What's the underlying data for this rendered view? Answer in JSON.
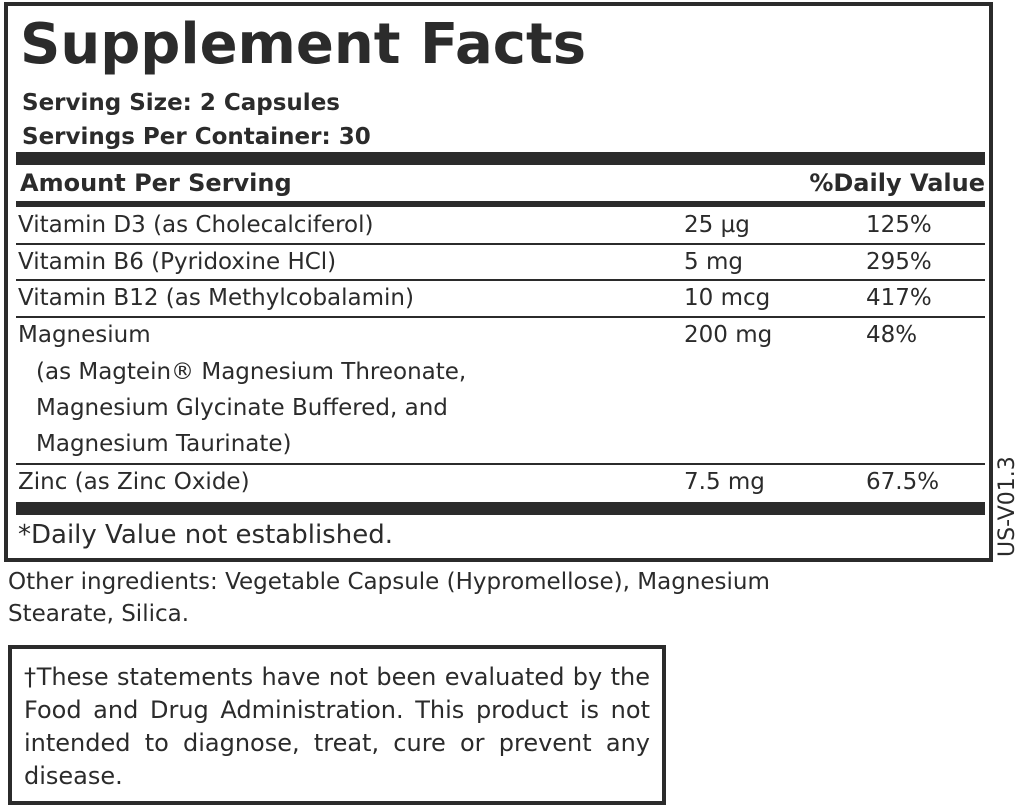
{
  "title": "Supplement Facts",
  "serving_size": "Serving Size: 2 Capsules",
  "servings_per_container": "Servings Per Container: 30",
  "header": {
    "amount": "Amount Per Serving",
    "dv": "%Daily Value"
  },
  "rows": [
    {
      "name": "Vitamin D3 (as Cholecalciferol)",
      "amount": "25 µg",
      "dv": "125%"
    },
    {
      "name": "Vitamin B6 (Pyridoxine HCl)",
      "amount": "5 mg",
      "dv": "295%"
    },
    {
      "name": "Vitamin B12 (as Methylcobalamin)",
      "amount": "10 mcg",
      "dv": "417%"
    },
    {
      "name": "Magnesium",
      "amount": "200 mg",
      "dv": "48%",
      "sub": [
        "(as Magtein® Magnesium Threonate,",
        "Magnesium Glycinate Buffered, and",
        "Magnesium Taurinate)"
      ]
    },
    {
      "name": "Zinc (as Zinc Oxide)",
      "amount": "7.5 mg",
      "dv": "67.5%"
    }
  ],
  "footnote": "*Daily Value not established.",
  "version_code": "US-V01.3",
  "other_ingredients": [
    "Other ingredients: Vegetable Capsule (Hypromellose), Magnesium",
    "Stearate, Silica."
  ],
  "disclaimer": "†These statements have not been evaluated by the Food and Drug Administration. This product is not intended to diagnose, treat, cure or prevent any disease."
}
